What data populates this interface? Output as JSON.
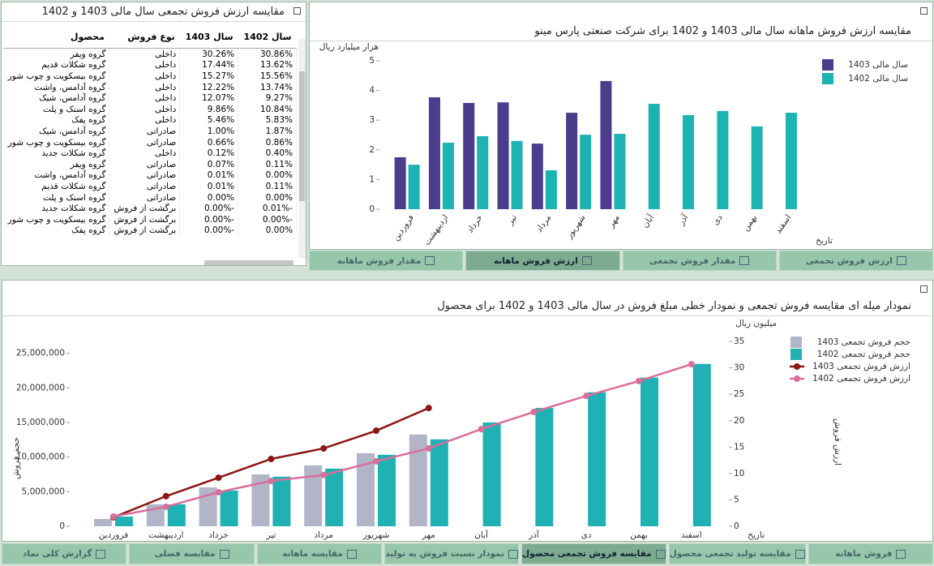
{
  "table": {
    "title": "مقایسه ارزش فروش تجمعی سال مالی 1403 و 1402",
    "columns": [
      "محصول",
      "نوع فروش",
      "سال 1403",
      "سال 1402"
    ],
    "rows": [
      [
        "گروه ویفر",
        "داخلی",
        "30.26%",
        "30.86%"
      ],
      [
        "گروه شکلات قدیم",
        "داخلی",
        "17.44%",
        "13.62%"
      ],
      [
        "گروه بیسکویت و چوب شور",
        "داخلی",
        "15.27%",
        "15.56%"
      ],
      [
        "گروه آدامس، واشت",
        "داخلی",
        "12.22%",
        "13.74%"
      ],
      [
        "گروه آدامس، شیک",
        "داخلی",
        "12.07%",
        "9.27%"
      ],
      [
        "گروه اسنک و پلت",
        "داخلی",
        "9.86%",
        "10.84%"
      ],
      [
        "گروه پفک",
        "داخلی",
        "5.46%",
        "5.83%"
      ],
      [
        "گروه آدامس، شیک",
        "صادراتی",
        "1.00%",
        "1.87%"
      ],
      [
        "گروه بیسکویت و چوب شور",
        "صادراتی",
        "0.66%",
        "0.86%"
      ],
      [
        "گروه شکلات جدید",
        "داخلی",
        "0.12%",
        "0.40%"
      ],
      [
        "گروه ویفر",
        "صادراتی",
        "0.07%",
        "0.11%"
      ],
      [
        "گروه آدامس، واشت",
        "صادراتی",
        "0.01%",
        "0.00%"
      ],
      [
        "گروه شکلات قدیم",
        "صادراتی",
        "0.01%",
        "0.11%"
      ],
      [
        "گروه اسنک و پلت",
        "صادراتی",
        "0.00%",
        "0.00%"
      ],
      [
        "گروه شکلات جدید",
        "برگشت از فروش",
        "-0.00%",
        "-0.01%"
      ],
      [
        "گروه بیسکویت و چوب شور",
        "برگشت از فروش",
        "-0.00%",
        "-0.00%"
      ],
      [
        "گروه پفک",
        "برگشت از فروش",
        "-0.00%",
        "0.00%"
      ]
    ]
  },
  "chart_data": [
    {
      "type": "bar",
      "title": "مقایسه ارزش فروش ماهانه سال مالی 1403 و 1402 برای شرکت صنعتی پارس مینو",
      "y_label": "هزار میلیارد ریال",
      "x_label": "تاریخ",
      "categories": [
        "فروردین",
        "اردیبهشت",
        "خرداد",
        "تیر",
        "مرداد",
        "شهریور",
        "مهر",
        "آبان",
        "آذر",
        "دی",
        "بهمن",
        "اسفند"
      ],
      "series": [
        {
          "name": "سال مالی 1403",
          "color": "#4b3c8c",
          "values": [
            1.75,
            3.77,
            3.58,
            3.6,
            2.21,
            3.25,
            4.32,
            null,
            null,
            null,
            null,
            null
          ]
        },
        {
          "name": "سال مالی 1402",
          "color": "#1db3b3",
          "values": [
            1.5,
            2.24,
            2.46,
            2.3,
            1.31,
            2.51,
            2.54,
            3.55,
            3.17,
            3.31,
            2.79,
            3.25
          ]
        }
      ],
      "ylim": [
        0,
        5
      ],
      "yticks": [
        0,
        1,
        2,
        3,
        4,
        5
      ],
      "grid": false,
      "legend": "right"
    },
    {
      "type": "bar-line",
      "title": "نمودار میله ای مقایسه فروش تجمعی و نمودار خطی مبلغ فروش در سال مالی 1403 و 1402 برای محصول",
      "y_label": "حجم فروش",
      "y2_label": "ارزش فروش",
      "y2_unit": "میلیون ریال",
      "x_label": "تاریخ",
      "categories": [
        "فروردین",
        "اردیبهشت",
        "خرداد",
        "تیر",
        "مرداد",
        "شهریور",
        "مهر",
        "آبان",
        "آذر",
        "دی",
        "بهمن",
        "اسفند"
      ],
      "series": [
        {
          "name": "حجم فروش تجمعی 1403",
          "kind": "bar",
          "color": "#b2b5c7",
          "values": [
            1060000,
            3170000,
            5630000,
            7500000,
            8800000,
            10560000,
            13260000,
            null,
            null,
            null,
            null,
            null
          ]
        },
        {
          "name": "حجم فروش تجمعی 1402",
          "kind": "bar",
          "color": "#1fb1b4",
          "values": [
            1400000,
            3170000,
            5160000,
            7160000,
            8330000,
            10330000,
            12560000,
            15000000,
            17100000,
            19370000,
            21480000,
            23470000
          ]
        },
        {
          "name": "ارزش فروش تجمعی 1403",
          "kind": "line",
          "axis": "y2",
          "color": "#8c1515",
          "values": [
            1.7,
            5.7,
            9.2,
            12.75,
            14.75,
            18.1,
            22.4,
            null,
            null,
            null,
            null,
            null
          ]
        },
        {
          "name": "ارزش فروش تجمعی 1402",
          "kind": "line",
          "axis": "y2",
          "color": "#d96e9b",
          "values": [
            1.85,
            3.7,
            6.45,
            8.6,
            9.7,
            12.3,
            14.75,
            18.4,
            21.65,
            24.7,
            27.5,
            30.7
          ]
        }
      ],
      "ylim": [
        0,
        29300000
      ],
      "yticks": [
        0,
        {
          "value": 5000000,
          "label": "5,000,000"
        },
        {
          "value": 10000000,
          "label": "10,000,000"
        },
        {
          "value": 15000000,
          "label": "15,000,000"
        },
        {
          "value": 20000000,
          "label": "20,000,000"
        },
        {
          "value": 25000000,
          "label": "25,000,000"
        }
      ],
      "y2lim": [
        0,
        38.4
      ],
      "y2ticks": [
        0,
        5,
        10,
        15,
        20,
        25,
        30,
        35
      ],
      "grid": false,
      "legend": "right"
    }
  ],
  "tabs": {
    "top": [
      "مقدار فروش ماهانه",
      "ارزش فروش ماهانه",
      "مقدار فروش تجمعی",
      "ارزش فروش تجمعی"
    ],
    "bottom": [
      "گزارش کلی نماد",
      "مقایسه فصلی",
      "مقایسه ماهانه",
      "نمودار نسبت فروش به تولید",
      "مقایسه فروش تجمعی محصول",
      "مقایسه تولید تجمعی محصول",
      "فروش ماهانه"
    ]
  }
}
